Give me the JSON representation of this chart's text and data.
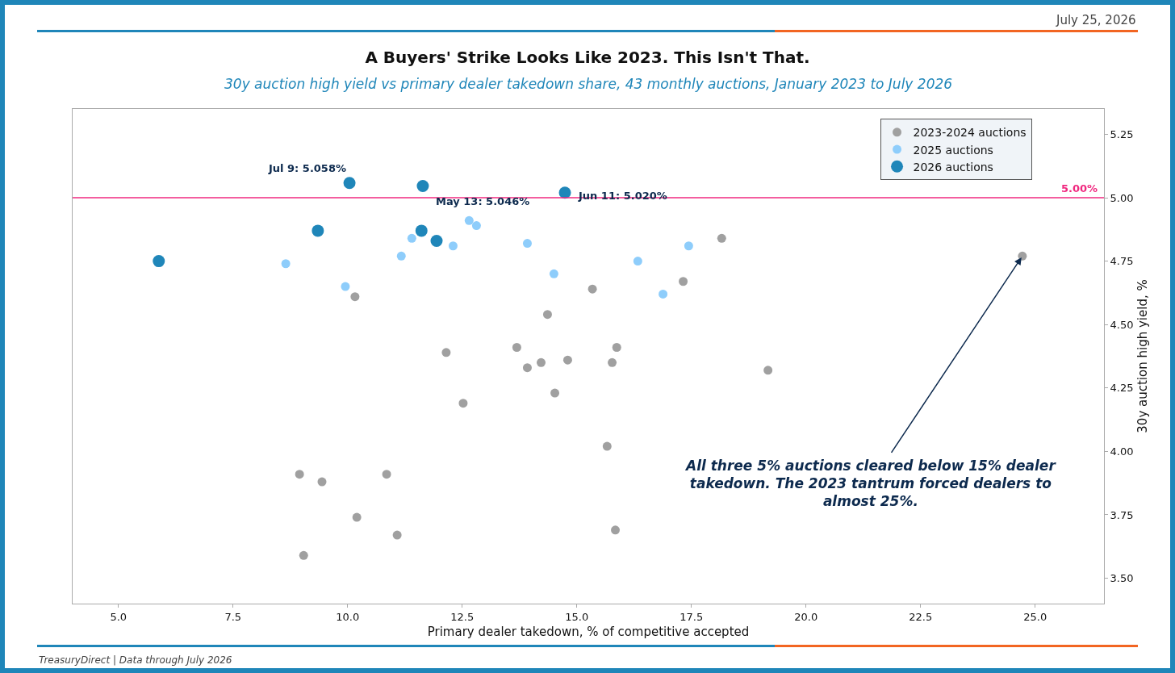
{
  "chart_data": {
    "type": "scatter",
    "title": "A Buyers' Strike Looks Like 2023. This Isn't That.",
    "subtitle": "30y auction high yield vs primary dealer takedown share, 43 monthly auctions, January 2023 to July 2026",
    "xlabel": "Primary dealer takedown, % of competitive accepted",
    "ylabel": "30y auction high yield, %",
    "series": [
      {
        "name": "2023-2024 auctions",
        "color": "#a0a0a0",
        "x": [
          10.16,
          18.16,
          24.72,
          15.34,
          17.32,
          14.36,
          12.15,
          13.69,
          13.92,
          14.22,
          14.8,
          15.87,
          15.77,
          19.17,
          14.52,
          12.52,
          8.95,
          9.44,
          10.85,
          10.2,
          11.08,
          9.04,
          15.66,
          15.84
        ],
        "values": [
          4.61,
          4.84,
          4.77,
          4.64,
          4.67,
          4.54,
          4.39,
          4.41,
          4.33,
          4.35,
          4.36,
          4.41,
          4.35,
          4.32,
          4.23,
          4.19,
          3.91,
          3.88,
          3.91,
          3.74,
          3.67,
          3.59,
          4.02,
          3.69
        ]
      },
      {
        "name": "2025 auctions",
        "color": "#8ecdfb",
        "x": [
          8.65,
          9.95,
          11.17,
          11.4,
          12.3,
          12.65,
          12.81,
          13.92,
          14.5,
          16.33,
          16.88,
          17.44
        ],
        "values": [
          4.74,
          4.65,
          4.77,
          4.84,
          4.81,
          4.91,
          4.89,
          4.82,
          4.7,
          4.75,
          4.62,
          4.81
        ]
      },
      {
        "name": "2026 auctions",
        "color": "#1f86b9",
        "x": [
          5.88,
          9.35,
          10.04,
          11.64,
          14.74,
          11.61,
          11.94
        ],
        "values": [
          4.75,
          4.87,
          5.058,
          5.046,
          5.02,
          4.87,
          4.83
        ]
      }
    ],
    "xlim": [
      4.0,
      26.5
    ],
    "xticks": [
      {
        "value": 5,
        "label": "5.0"
      },
      7.5,
      {
        "value": 10,
        "label": "10.0"
      },
      12.5,
      {
        "value": 15,
        "label": "15.0"
      },
      17.5,
      {
        "value": 20,
        "label": "20.0"
      },
      22.5,
      {
        "value": 25,
        "label": "25.0"
      }
    ],
    "ylim": [
      3.4,
      5.35
    ],
    "yticks": [
      {
        "value": 3.5,
        "label": "3.50"
      },
      3.75,
      {
        "value": 4,
        "label": "4.00"
      },
      4.25,
      {
        "value": 4.5,
        "label": "4.50"
      },
      4.75,
      {
        "value": 5,
        "label": "5.00"
      },
      5.25
    ],
    "ref_lines": [
      {
        "axis": "y",
        "value": 5,
        "label": "5.00%",
        "color": "#f0287f"
      }
    ],
    "annotations": [
      "July 25, 2026",
      {
        "text": "Jul 9: 5.058%",
        "x": 10.04,
        "y": 5.058
      },
      {
        "text": "May 13: 5.046%",
        "x": 11.64,
        "y": 5.046
      },
      {
        "text": "Jun 11: 5.020%",
        "x": 14.74,
        "y": 5.02
      },
      {
        "text": "All three 5% auctions cleared below 15% dealer takedown. The 2023 tantrum forced dealers to almost 25%.",
        "x": 24.72,
        "y": 4.77
      },
      "TreasuryDirect | Data through July 2026"
    ],
    "legend": "top right",
    "marker": "circle",
    "grid": false
  }
}
